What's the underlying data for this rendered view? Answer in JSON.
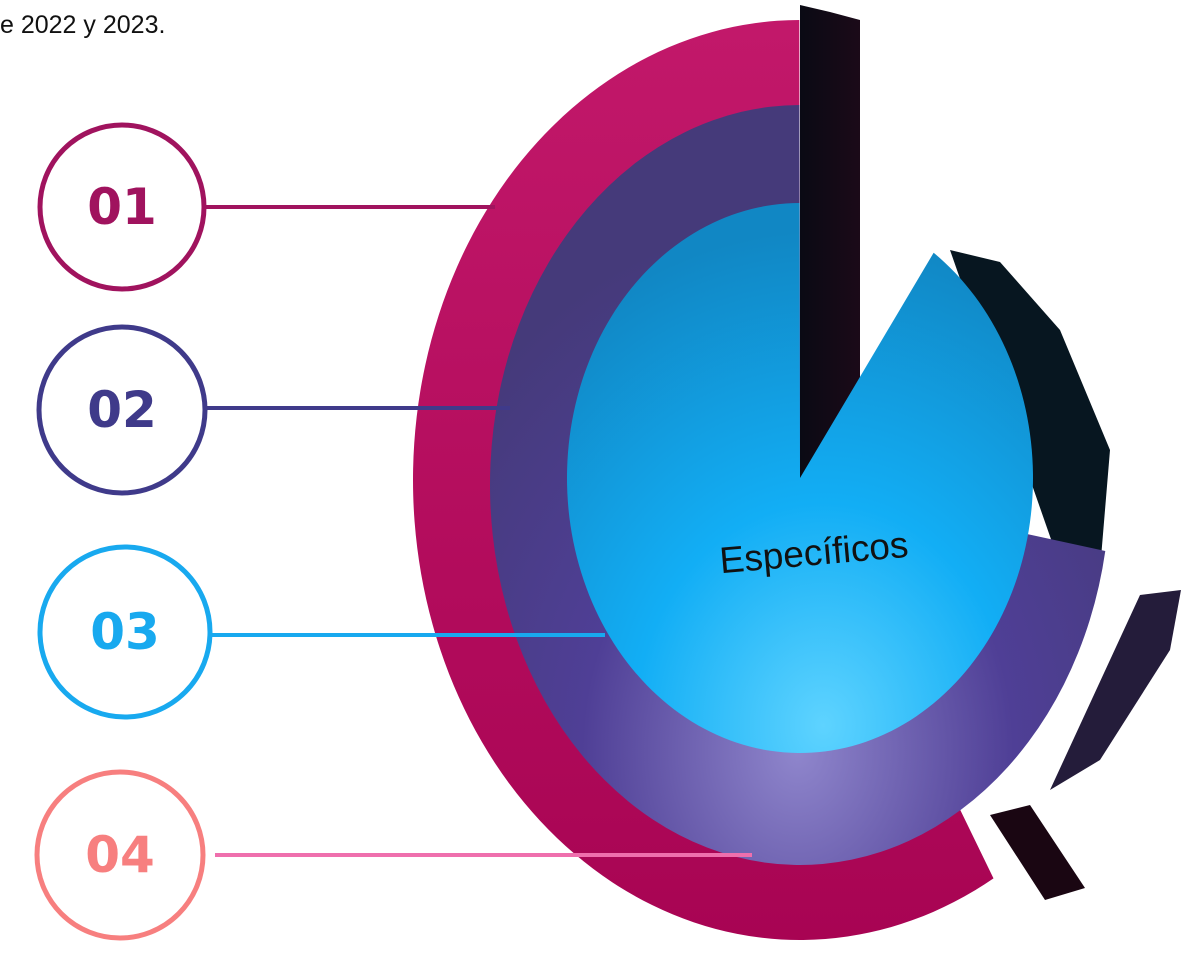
{
  "header_text": "e 2022 y 2023.",
  "steps": [
    {
      "label": "01"
    },
    {
      "label": "02"
    },
    {
      "label": "03"
    },
    {
      "label": "04"
    }
  ],
  "center_label": "Específicos"
}
